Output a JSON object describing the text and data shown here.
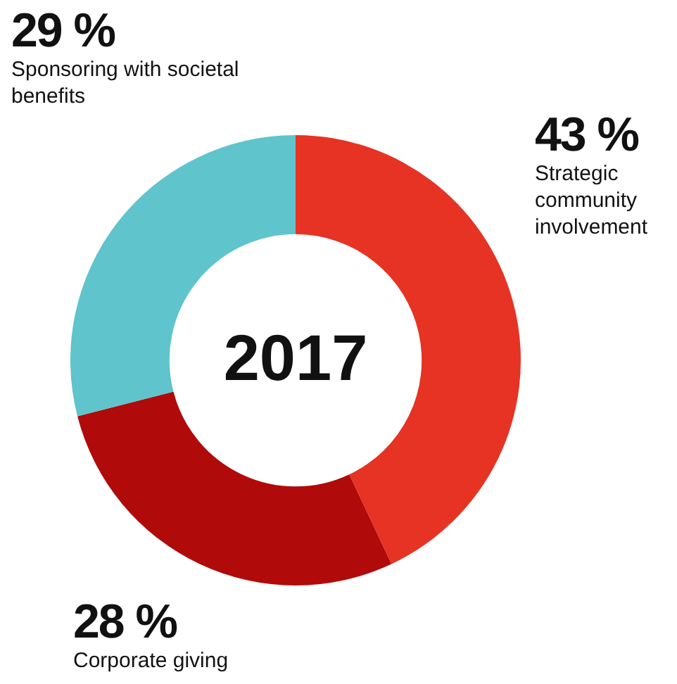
{
  "chart_data": {
    "type": "donut",
    "title": "2017",
    "categories": [
      "Strategic community involvement",
      "Corporate giving",
      "Sponsoring with societal benefits"
    ],
    "values": [
      43,
      28,
      29
    ],
    "colors": [
      "#e63323",
      "#b00a0a",
      "#5fc4cc"
    ],
    "value_labels": [
      "43 %",
      "28 %",
      "29 %"
    ],
    "legend": false
  }
}
